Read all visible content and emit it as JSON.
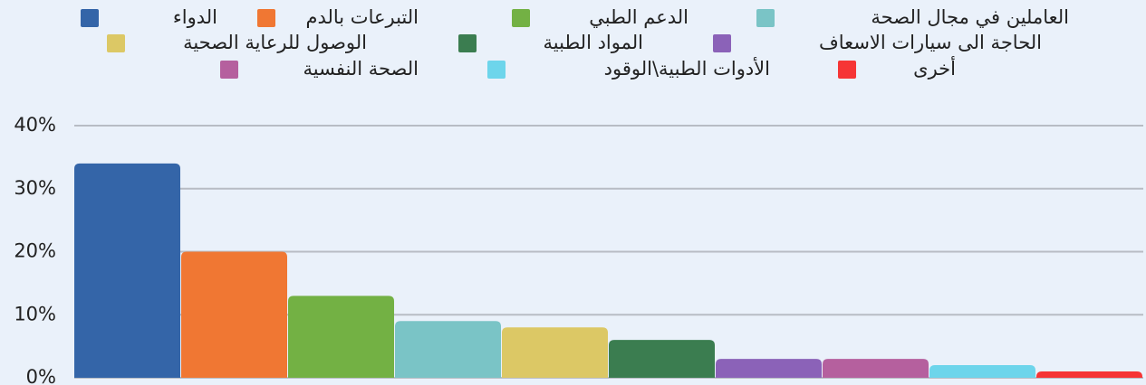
{
  "chart_data": {
    "type": "bar",
    "categories": [
      "الدواء",
      "التبرعات بالدم",
      "الدعم الطبي",
      "العاملين في مجال الصحة",
      "الوصول للرعاية الصحية",
      "المواد الطبية",
      "الحاجة الى سيارات الاسعاف",
      "الصحة النفسية",
      "الأدوات الطبية\\الوقود",
      "أخرى"
    ],
    "values": [
      34,
      20,
      13,
      9,
      8,
      6,
      3,
      3,
      2,
      1
    ],
    "colors": [
      "#3465a8",
      "#f07733",
      "#73b144",
      "#7ac4c6",
      "#dcc865",
      "#3b7d50",
      "#8b62b8",
      "#b5609e",
      "#6dd5eb",
      "#f63535"
    ],
    "ylim": [
      0,
      40
    ],
    "yticks": [
      {
        "value": 0,
        "label": "0%"
      },
      {
        "value": 10,
        "label": "10%"
      },
      {
        "value": 20,
        "label": "20%"
      },
      {
        "value": 30,
        "label": "30%"
      },
      {
        "value": 40,
        "label": "40%"
      }
    ],
    "grid": true,
    "legend": "top"
  }
}
